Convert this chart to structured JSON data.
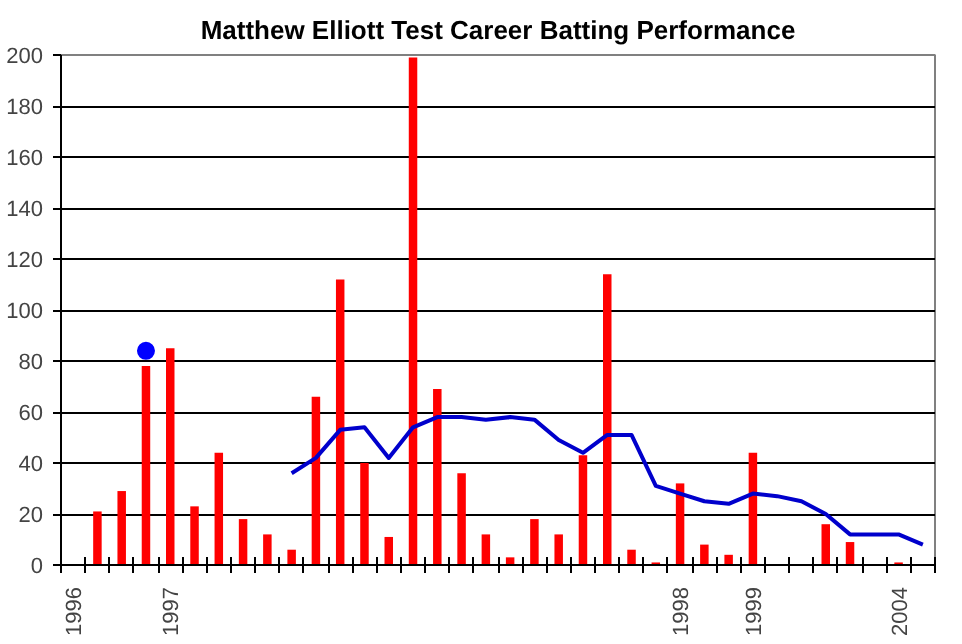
{
  "chart_data": {
    "type": "bar",
    "title": "Matthew Elliott Test Career Batting Performance",
    "categories": [
      "1996",
      null,
      null,
      null,
      "1997",
      null,
      null,
      null,
      null,
      null,
      null,
      null,
      null,
      null,
      null,
      null,
      null,
      null,
      null,
      null,
      null,
      null,
      null,
      null,
      null,
      "1998",
      null,
      null,
      "1999",
      null,
      null,
      null,
      null,
      null,
      "2004",
      null
    ],
    "series": [
      {
        "color": "#ff0000",
        "values": [
          null,
          21,
          29,
          78,
          85,
          23,
          44,
          18,
          12,
          6,
          66,
          112,
          40,
          11,
          199,
          69,
          36,
          12,
          3,
          18,
          12,
          43,
          114,
          6,
          1,
          32,
          8,
          4,
          44,
          null,
          null,
          16,
          9,
          null,
          1,
          null
        ]
      },
      {
        "type": "line",
        "color": "#0000cc",
        "values": [
          null,
          null,
          null,
          null,
          null,
          null,
          null,
          null,
          null,
          36,
          42,
          53,
          54,
          42,
          54,
          58,
          58,
          57,
          58,
          57,
          49,
          44,
          51,
          51,
          31,
          28,
          25,
          24,
          28,
          27,
          25,
          20,
          12,
          12,
          12,
          8
        ]
      },
      {
        "type": "scatter",
        "marker": "circle",
        "color": "#0000ff",
        "values": [
          null,
          null,
          null,
          84,
          null,
          null,
          null,
          null,
          null,
          null,
          null,
          null,
          null,
          null,
          null,
          null,
          null,
          null,
          null,
          null,
          null,
          null,
          null,
          null,
          null,
          null,
          null,
          null,
          null,
          null,
          null,
          null,
          null,
          null,
          null,
          null
        ]
      }
    ],
    "ylim": [
      0,
      200
    ],
    "yticks": [
      0,
      20,
      40,
      60,
      80,
      100,
      120,
      140,
      160,
      180,
      200
    ],
    "grid": "y",
    "line_style": "solid"
  }
}
